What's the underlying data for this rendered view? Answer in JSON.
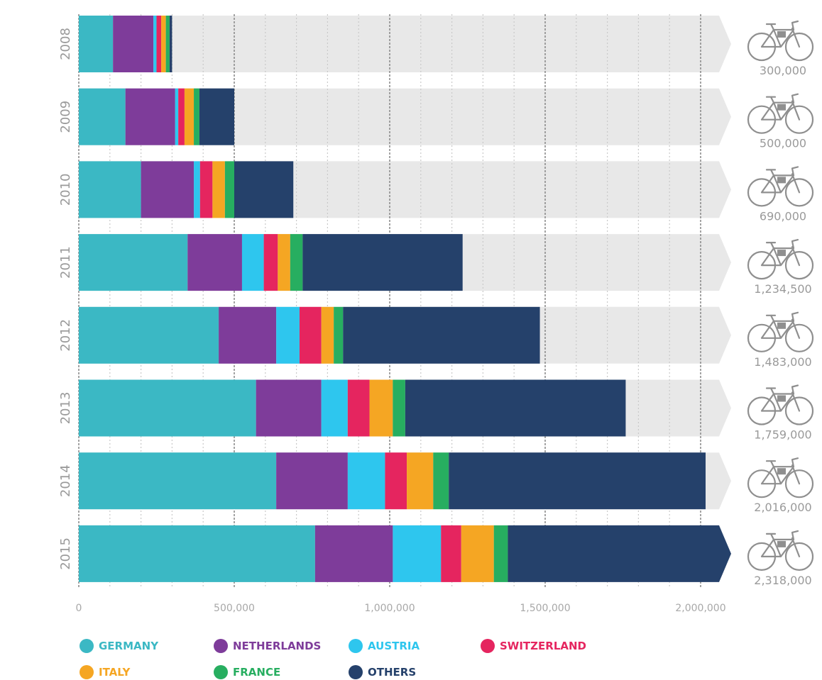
{
  "chart_data": {
    "type": "bar",
    "orientation": "horizontal",
    "stacked": true,
    "categories": [
      "2008",
      "2009",
      "2010",
      "2011",
      "2012",
      "2013",
      "2014",
      "2015"
    ],
    "series": [
      {
        "name": "GERMANY",
        "color": "#3bb8c4",
        "values": [
          110000,
          150000,
          200000,
          350000,
          450000,
          570000,
          635000,
          760000
        ]
      },
      {
        "name": "NETHERLANDS",
        "color": "#7e3c9a",
        "values": [
          130000,
          160000,
          170000,
          175000,
          185000,
          210000,
          230000,
          250000
        ]
      },
      {
        "name": "AUSTRIA",
        "color": "#2ec6ee",
        "values": [
          10000,
          10000,
          20000,
          70000,
          75000,
          85000,
          120000,
          155000
        ]
      },
      {
        "name": "SWITZERLAND",
        "color": "#e5255f",
        "values": [
          15000,
          20000,
          40000,
          45000,
          70000,
          70000,
          70000,
          65000
        ]
      },
      {
        "name": "ITALY",
        "color": "#f5a623",
        "values": [
          15000,
          30000,
          40000,
          40000,
          40000,
          75000,
          85000,
          105000
        ]
      },
      {
        "name": "FRANCE",
        "color": "#27ae60",
        "values": [
          12000,
          18000,
          30000,
          40000,
          30000,
          40000,
          50000,
          45000
        ]
      },
      {
        "name": "OTHERS",
        "color": "#25416b",
        "values": [
          8000,
          112000,
          190000,
          514500,
          633000,
          709000,
          826000,
          938000
        ]
      }
    ],
    "totals": [
      "300,000",
      "500,000",
      "690,000",
      "1,234,500",
      "1,483,000",
      "1,759,000",
      "2,016,000",
      "2,318,000"
    ],
    "x_ticks": [
      {
        "value": 0,
        "label": "0"
      },
      {
        "value": 500000,
        "label": "500,000"
      },
      {
        "value": 1000000,
        "label": "1,000,000"
      },
      {
        "value": 1500000,
        "label": "1,500,000"
      },
      {
        "value": 2000000,
        "label": "2,000,000"
      }
    ],
    "xlim": [
      0,
      2100000
    ],
    "grid": true,
    "legend_position": "bottom",
    "legend_rows": [
      [
        "GERMANY",
        "NETHERLANDS",
        "AUSTRIA",
        "SWITZERLAND"
      ],
      [
        "ITALY",
        "FRANCE",
        "OTHERS"
      ]
    ],
    "icon": "bicycle-icon",
    "background_arrow_color": "#e8e8e8"
  }
}
